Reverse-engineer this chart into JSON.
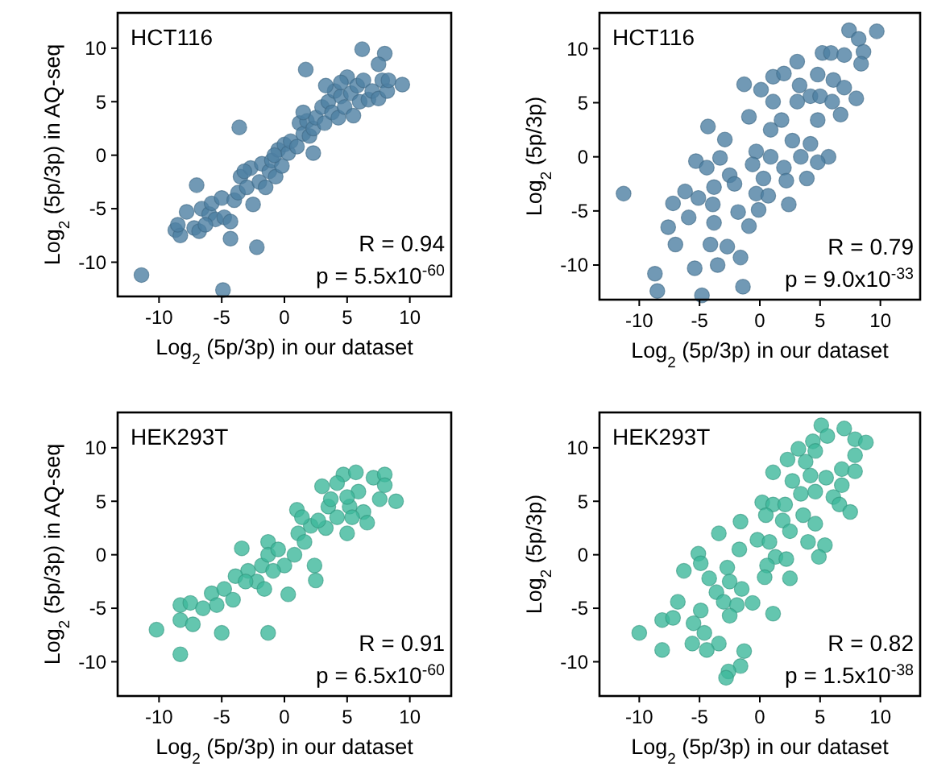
{
  "chart_data": [
    {
      "type": "scatter",
      "xlabel": "Log$_{2}$ (5p/3p) in our dataset",
      "ylabel": "Log$_{2}$ (5p/3p) in AQ-seq",
      "annotations": [
        "HCT116",
        "R = 0.94",
        "p = 5.5x10$^{-60}$"
      ],
      "xlim": [
        -13.3,
        13.3
      ],
      "ylim": [
        -13.2,
        13.3
      ],
      "xticks": [
        -10,
        -5,
        0,
        5,
        10
      ],
      "yticks": [
        -10,
        -5,
        0,
        5,
        10
      ],
      "grid": false,
      "marker": "circle",
      "series": [
        {
          "color": "#4d80a3",
          "x": [
            6.2,
            8.0,
            1.7,
            9.4,
            -3.6,
            -7.0,
            -11.4,
            -4.9,
            -2.2,
            -4.3,
            -8.7,
            -8.3,
            -7.8,
            -7.2,
            -6.8,
            -6.6,
            -6.0,
            -5.8,
            -5.5,
            -5.0,
            -4.8,
            -4.3,
            -4.0,
            -3.7,
            -3.5,
            -3.0,
            -2.7,
            -2.5,
            -2.0,
            -1.8,
            -1.5,
            -1.2,
            -1.0,
            -0.7,
            -0.5,
            -0.2,
            0.0,
            0.3,
            0.5,
            1.0,
            1.2,
            1.5,
            1.8,
            2.0,
            2.3,
            2.5,
            2.3,
            3.0,
            3.2,
            3.5,
            3.8,
            4.0,
            4.3,
            4.5,
            4.8,
            5.0,
            5.3,
            5.5,
            5.8,
            6.0,
            6.3,
            6.7,
            7.0,
            7.5,
            7.8,
            8.2,
            8.3,
            7.5,
            3.3,
            4.5,
            -6.3,
            -3.2,
            -0.8,
            1.5,
            -8.5
          ],
          "values": [
            9.9,
            9.5,
            8.0,
            6.6,
            2.6,
            -2.8,
            -11.2,
            -12.6,
            -8.6,
            -7.8,
            -7.0,
            -7.5,
            -5.3,
            -6.8,
            -7.1,
            -5.0,
            -5.5,
            -4.5,
            -6.0,
            -4.0,
            -5.8,
            -6.2,
            -4.2,
            -3.5,
            -2.0,
            -3.0,
            -1.2,
            -4.6,
            -2.5,
            -0.8,
            -3.0,
            -1.5,
            -0.5,
            -2.0,
            0.5,
            -1.0,
            1.0,
            0.2,
            1.3,
            0.8,
            3.0,
            2.0,
            3.2,
            1.8,
            2.5,
            3.5,
            0.2,
            4.5,
            3.0,
            5.0,
            4.0,
            6.0,
            3.5,
            5.5,
            4.5,
            7.3,
            5.8,
            3.7,
            6.5,
            5.0,
            7.0,
            5.2,
            6.0,
            5.3,
            7.0,
            6.0,
            7.0,
            8.5,
            6.5,
            6.8,
            -6.5,
            -1.5,
            0.0,
            4.0,
            -6.5
          ]
        }
      ]
    },
    {
      "type": "scatter",
      "xlabel": "Log$_{2}$ (5p/3p) in our dataset",
      "ylabel": "Log$_{2}$ (5p/3p)",
      "annotations": [
        "HCT116",
        "R = 0.79",
        "p = 9.0x10$^{-33}$"
      ],
      "xlim": [
        -13.3,
        13.3
      ],
      "ylim": [
        -13.2,
        13.3
      ],
      "xticks": [
        -10,
        -5,
        0,
        5,
        10
      ],
      "yticks": [
        -10,
        -5,
        0,
        5,
        10
      ],
      "grid": false,
      "marker": "circle",
      "series": [
        {
          "color": "#4d80a3",
          "x": [
            7.4,
            9.7,
            8.2,
            5.2,
            5.9,
            7.0,
            8.6,
            3.1,
            8.4,
            -1.3,
            0.1,
            1.1,
            2.0,
            4.8,
            6.1,
            7.0,
            8.0,
            3.3,
            4.2,
            5.0,
            6.0,
            1.1,
            3.1,
            -0.9,
            1.8,
            4.8,
            6.7,
            -4.3,
            -2.9,
            0.9,
            2.7,
            4.2,
            -0.3,
            0.9,
            3.4,
            5.7,
            -5.3,
            -3.3,
            -4.4,
            -0.6,
            2.0,
            4.8,
            3.9,
            -2.5,
            -3.8,
            -2.1,
            0.3,
            2.2,
            -11.3,
            -6.2,
            -7.2,
            -5.1,
            -3.9,
            -1.8,
            -0.3,
            0.7,
            2.4,
            -5.9,
            -7.6,
            -3.8,
            -0.9,
            -7.0,
            -4.1,
            -2.7,
            -1.6,
            -5.4,
            -3.5,
            -8.7,
            -8.5,
            -4.8,
            -1.4,
            -0.1
          ],
          "values": [
            11.7,
            11.6,
            10.9,
            9.6,
            9.6,
            9.4,
            9.7,
            8.8,
            8.6,
            6.7,
            6.2,
            7.4,
            7.7,
            7.6,
            7.1,
            6.4,
            5.4,
            6.6,
            5.6,
            5.6,
            5.1,
            5.1,
            5.1,
            3.7,
            3.4,
            3.4,
            3.9,
            2.8,
            1.6,
            2.5,
            1.5,
            1.2,
            0.5,
            0.0,
            0.0,
            0.0,
            -0.4,
            -0.1,
            -1.0,
            -0.7,
            -1.0,
            -0.5,
            -2.0,
            -1.7,
            -2.8,
            -2.5,
            -2.0,
            -2.2,
            -3.4,
            -3.2,
            -4.3,
            -3.8,
            -4.4,
            -5.1,
            -3.4,
            -3.6,
            -4.4,
            -5.6,
            -6.5,
            -6.1,
            -6.4,
            -8.1,
            -8.1,
            -8.3,
            -9.3,
            -10.3,
            -10.0,
            -10.8,
            -12.4,
            -12.8,
            -12.0,
            -4.9
          ]
        }
      ]
    },
    {
      "type": "scatter",
      "xlabel": "Log$_{2}$ (5p/3p) in our dataset",
      "ylabel": "Log$_{2}$ (5p/3p) in AQ-seq",
      "annotations": [
        "HEK293T",
        "R = 0.91",
        "p = 6.5x10$^{-60}$"
      ],
      "xlim": [
        -13.3,
        13.3
      ],
      "ylim": [
        -13.2,
        13.3
      ],
      "xticks": [
        -10,
        -5,
        0,
        5,
        10
      ],
      "yticks": [
        -10,
        -5,
        0,
        5,
        10
      ],
      "grid": false,
      "marker": "circle",
      "series": [
        {
          "color": "#3db89b",
          "x": [
            -10.2,
            -8.3,
            -8.3,
            -7.3,
            -8.3,
            -7.5,
            -5.8,
            -5.0,
            -5.4,
            -4.8,
            -4.1,
            -3.4,
            -2.9,
            -2.2,
            -1.6,
            -1.3,
            -1.8,
            -1.3,
            -1.3,
            -0.5,
            0.3,
            0.0,
            0.8,
            1.0,
            1.1,
            1.6,
            2.4,
            2.5,
            2.1,
            3.0,
            3.3,
            3.5,
            4.2,
            5.0,
            5.2,
            4.7,
            5.7,
            5.9,
            6.3,
            6.6,
            7.1,
            7.6,
            8.0,
            8.0,
            8.9,
            3.7,
            2.7,
            -0.9,
            -3.9,
            -6.5,
            1.4,
            4.2,
            5.4,
            -3.1,
            5.0
          ],
          "values": [
            -7.0,
            -9.3,
            -6.1,
            -6.5,
            -4.7,
            -4.5,
            -3.6,
            -7.3,
            -4.7,
            -3.2,
            -4.2,
            0.6,
            -1.5,
            -2.5,
            -3.2,
            -7.3,
            -1.0,
            1.2,
            0.0,
            0.5,
            -3.7,
            -1.0,
            0.0,
            4.2,
            2.0,
            1.2,
            -1.0,
            -2.4,
            2.7,
            6.4,
            2.5,
            4.5,
            3.5,
            2.0,
            4.5,
            7.5,
            7.7,
            5.9,
            4.0,
            3.0,
            7.2,
            5.2,
            7.5,
            6.5,
            5.0,
            5.2,
            3.2,
            -1.5,
            -2.0,
            -5.0,
            3.5,
            6.7,
            3.5,
            -2.5,
            5.4
          ]
        }
      ]
    },
    {
      "type": "scatter",
      "xlabel": "Log$_{2}$ (5p/3p) in our dataset",
      "ylabel": "Log$_{2}$ (5p/3p)",
      "annotations": [
        "HEK293T",
        "R = 0.82",
        "p = 1.5x10$^{-38}$"
      ],
      "xlim": [
        -13.3,
        13.3
      ],
      "ylim": [
        -13.2,
        13.3
      ],
      "xticks": [
        -10,
        -5,
        0,
        5,
        10
      ],
      "yticks": [
        -10,
        -5,
        0,
        5,
        10
      ],
      "grid": false,
      "marker": "circle",
      "series": [
        {
          "color": "#3db89b",
          "x": [
            5.1,
            7.0,
            5.6,
            7.9,
            8.8,
            4.4,
            3.2,
            4.6,
            7.9,
            2.3,
            1.1,
            3.8,
            6.8,
            7.9,
            2.7,
            4.2,
            5.5,
            6.8,
            3.4,
            4.6,
            6.1,
            6.6,
            7.5,
            0.2,
            1.1,
            2.1,
            0.5,
            1.9,
            3.6,
            4.6,
            2.5,
            -1.6,
            -3.4,
            -0.2,
            0.8,
            4.0,
            5.4,
            -1.7,
            1.3,
            2.2,
            4.9,
            -5.1,
            -4.9,
            -6.3,
            -2.7,
            0.6,
            -4.2,
            -2.5,
            -1.5,
            0.4,
            2.5,
            -3.6,
            -3.0,
            -1.9,
            -0.6,
            -6.8,
            -4.9,
            -2.5,
            1.1,
            -8.1,
            -7.2,
            -5.5,
            -10.0,
            -4.6,
            -5.6,
            -3.4,
            -8.1,
            -4.4,
            -1.3,
            -1.6,
            -2.6,
            -2.8
          ],
          "values": [
            12.1,
            11.8,
            11.1,
            10.8,
            10.5,
            10.6,
            9.9,
            9.7,
            9.3,
            8.9,
            7.7,
            8.7,
            8.0,
            7.8,
            6.9,
            7.4,
            7.2,
            6.5,
            5.7,
            5.9,
            5.4,
            4.7,
            4.0,
            4.9,
            4.7,
            4.7,
            3.7,
            3.2,
            3.7,
            2.9,
            2.2,
            3.1,
            2.0,
            1.4,
            1.2,
            1.2,
            0.9,
            0.5,
            -0.2,
            -0.4,
            -0.2,
            0.1,
            -0.8,
            -1.5,
            -1.2,
            -1.0,
            -2.2,
            -2.5,
            -3.2,
            -2.1,
            -2.2,
            -3.5,
            -4.4,
            -4.7,
            -4.5,
            -4.4,
            -5.2,
            -5.7,
            -5.5,
            -6.1,
            -5.9,
            -6.4,
            -7.3,
            -7.3,
            -8.3,
            -8.3,
            -8.9,
            -8.9,
            -9.0,
            -10.4,
            -10.9,
            -11.5
          ]
        }
      ]
    }
  ]
}
